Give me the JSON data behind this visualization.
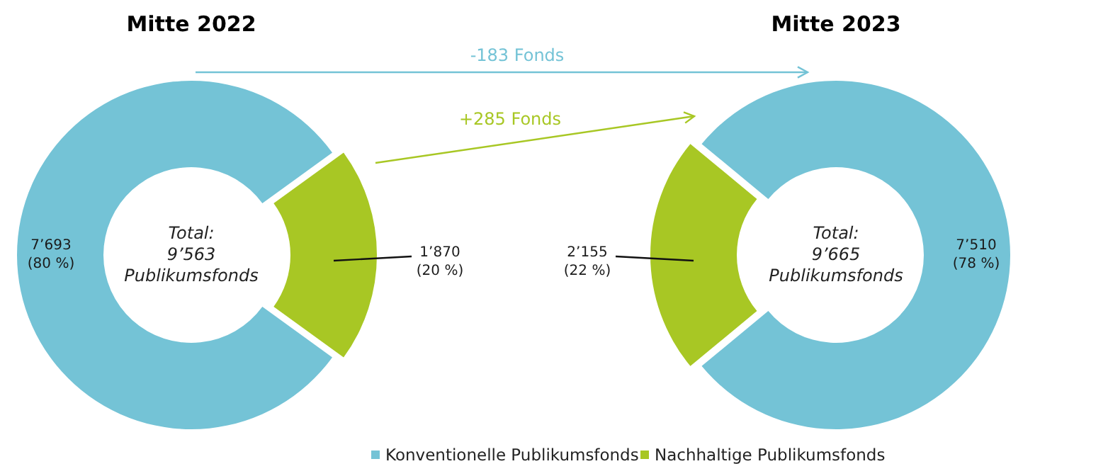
{
  "chart_data": [
    {
      "type": "donut",
      "title": "Mitte 2022",
      "categories": [
        "Konventionelle Publikumsfonds",
        "Nachhaltige Publikumsfonds"
      ],
      "values": [
        80,
        20
      ],
      "colors": [
        "#74c3d6",
        "#a8c724"
      ],
      "value_labels": [
        "7’693\n(80 %)",
        "1’870\n(20 %)"
      ],
      "annotations": [
        "Total:\n9’563\nPublikumsfonds"
      ],
      "legend": "bottom"
    },
    {
      "type": "donut",
      "title": "Mitte 2023",
      "categories": [
        null,
        null
      ],
      "values": [
        78,
        22
      ],
      "colors": [
        "#74c3d6",
        "#a8c724"
      ],
      "value_labels": [
        "7’510\n(78 %)",
        "2’155\n(22 %)"
      ],
      "annotations": [
        "Total:\n9’665\nPublikumsfonds",
        "-183 Fonds",
        "+285 Fonds"
      ]
    }
  ]
}
